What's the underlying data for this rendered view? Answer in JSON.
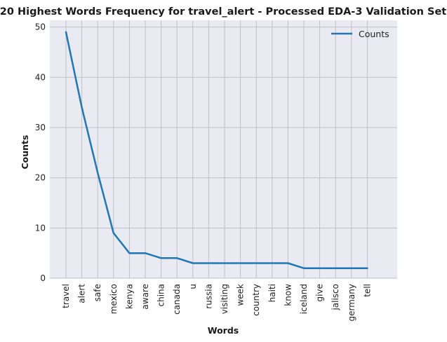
{
  "chart_data": {
    "type": "line",
    "title": "20 Highest Words Frequency for travel_alert - Processed EDA-3 Validation Set",
    "xlabel": "Words",
    "ylabel": "Counts",
    "categories": [
      "travel",
      "alert",
      "safe",
      "mexico",
      "kenya",
      "aware",
      "china",
      "canada",
      "u",
      "russia",
      "visiting",
      "week",
      "country",
      "haiti",
      "know",
      "iceland",
      "give",
      "jalisco",
      "germany",
      "tell"
    ],
    "series": [
      {
        "name": "Counts",
        "values": [
          49,
          34,
          21,
          9,
          5,
          5,
          4,
          4,
          3,
          3,
          3,
          3,
          3,
          3,
          3,
          2,
          2,
          2,
          2,
          2
        ],
        "color": "#1f77b4"
      }
    ],
    "ylim": [
      0,
      51.35
    ],
    "yticks": [
      0,
      10,
      20,
      30,
      40,
      50
    ],
    "grid": true,
    "legend_position": "top-right",
    "background": "#eaeaf2",
    "grid_color": "#c0c0c8"
  }
}
